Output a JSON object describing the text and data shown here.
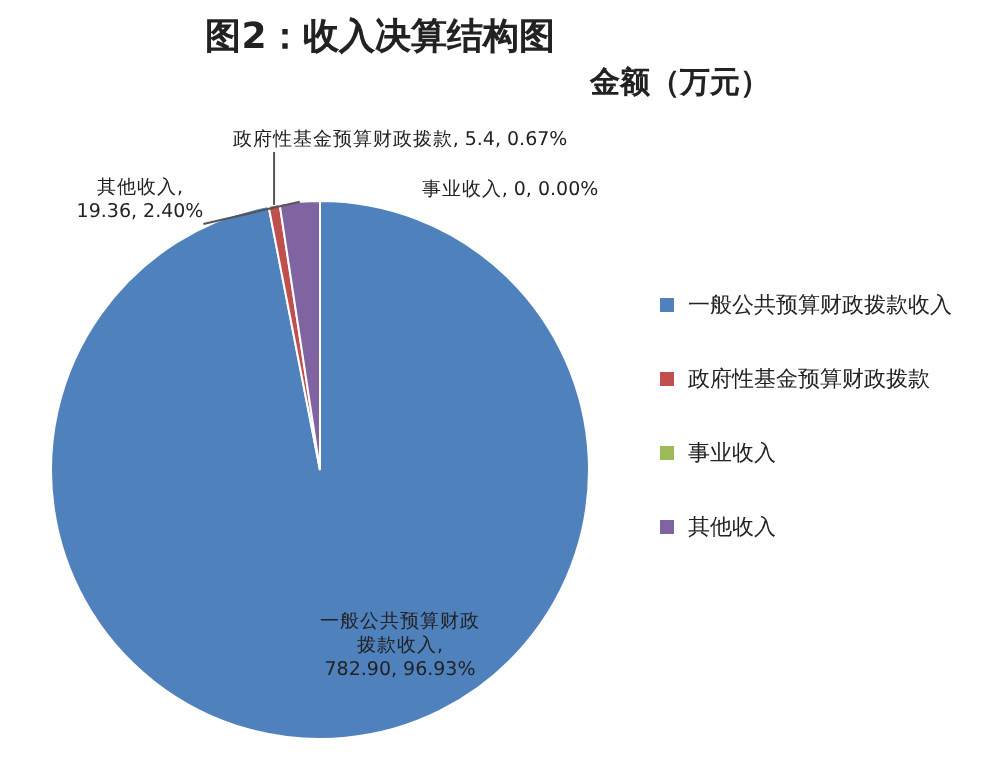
{
  "chart_data": {
    "type": "pie",
    "title": "图2：收入决算结构图",
    "subtitle": "金额（万元）",
    "categories": [
      "一般公共预算财政拨款收入",
      "政府性基金预算财政拨款",
      "事业收入",
      "其他收入"
    ],
    "values": [
      782.9,
      5.4,
      0,
      19.36
    ],
    "colors": [
      "#4f81bd",
      "#c0504d",
      "#9bbb59",
      "#8064a2"
    ],
    "value_labels": [
      "一般公共预算财政拨款收入, 782.90, 96.93%",
      "政府性基金预算财政拨款, 5.4, 0.67%",
      "事业收入, 0, 0.00%",
      "其他收入, 19.36, 2.40%"
    ],
    "legend": "right"
  }
}
